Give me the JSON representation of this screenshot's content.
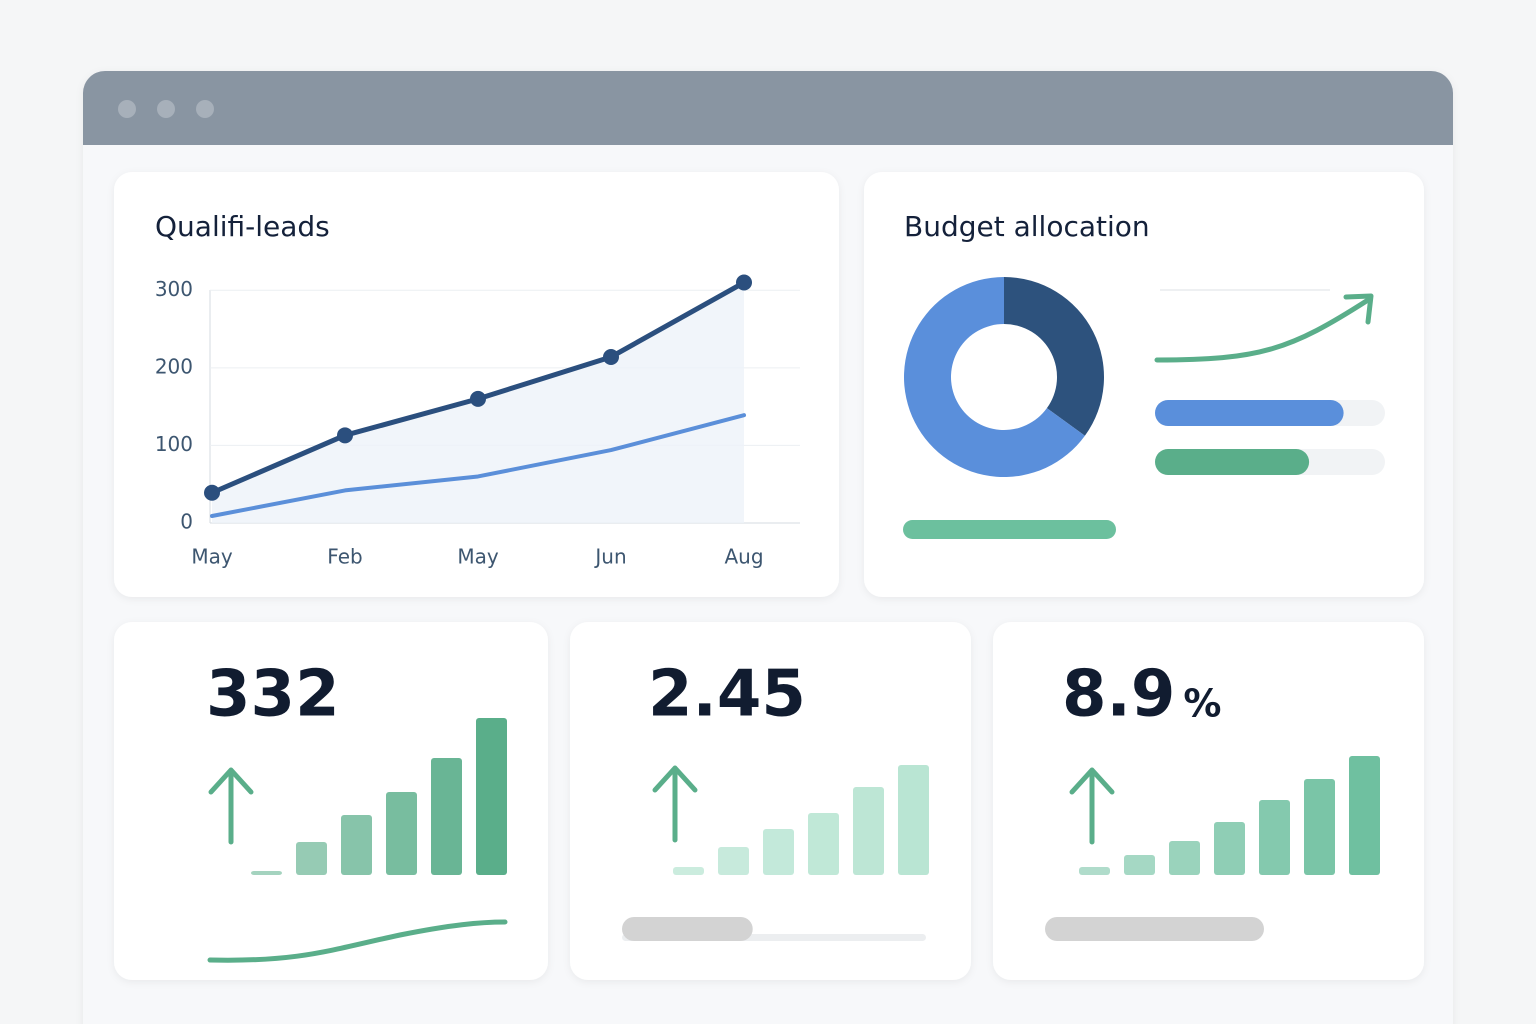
{
  "leads_chart": {
    "type": "line",
    "title": "Qualifi-leads",
    "categories": [
      "May",
      "Feb",
      "May",
      "Jun",
      "Aug"
    ],
    "ylim": [
      0,
      330
    ],
    "yticks": [
      0,
      100,
      200,
      300
    ],
    "grid": true,
    "series": [
      {
        "color": "#2b4f7e",
        "values": [
          39,
          113,
          160,
          214,
          310
        ],
        "markers": true,
        "area": true
      },
      {
        "color": "#5b8fd9",
        "values": [
          9,
          42,
          60,
          94,
          139
        ]
      }
    ]
  },
  "budget": {
    "type": "donut",
    "title": "Budget allocation",
    "values": [
      35,
      65
    ],
    "colors": [
      "#2d527d",
      "#5a8fdb"
    ],
    "progress": [
      {
        "value": 82,
        "color": "#5a8fdb"
      },
      {
        "value": 67,
        "color": "#5aae8a"
      }
    ]
  },
  "kpis": [
    {
      "value": 332,
      "color": "#5aae8a",
      "bars": [
        4,
        33,
        60,
        83,
        117,
        157
      ]
    },
    {
      "value": 2.45,
      "color": "#b9e5d3",
      "bars": [
        8,
        28,
        46,
        62,
        88,
        110
      ],
      "progress": 43
    },
    {
      "value": 8.9,
      "unit": "%",
      "color": "#6fc0a0",
      "bars": [
        8,
        20,
        34,
        53,
        75,
        96,
        119
      ]
    }
  ]
}
